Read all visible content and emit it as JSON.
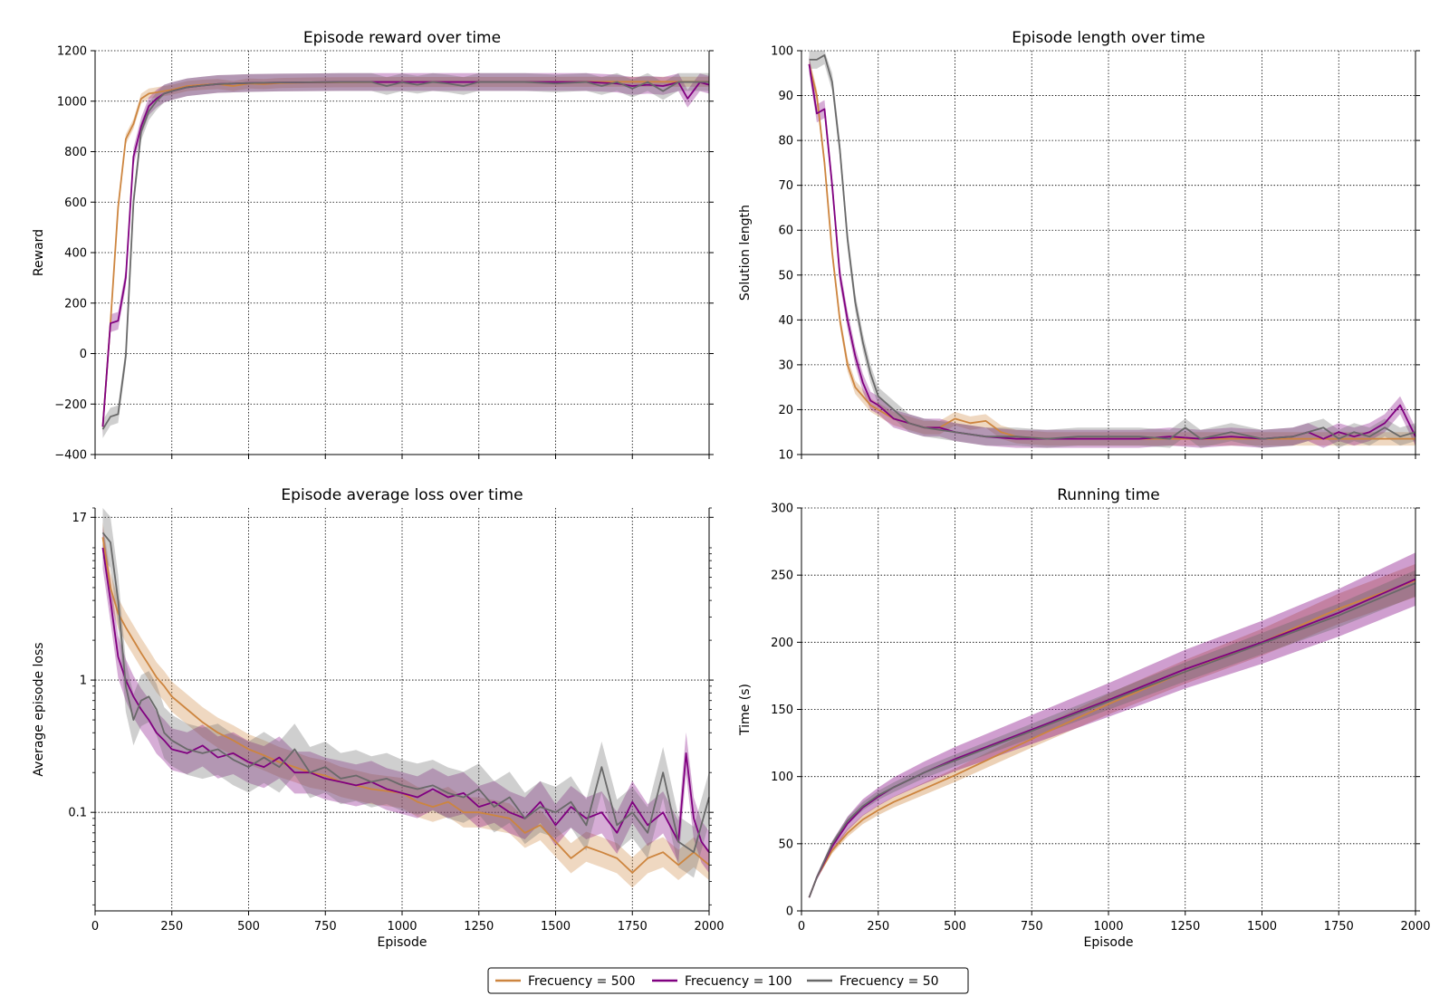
{
  "colors": {
    "freq500": "#cd853f",
    "freq100": "#800080",
    "freq50": "#696969"
  },
  "legend": [
    {
      "label": "Frecuency = 500",
      "color": "#cd853f"
    },
    {
      "label": "Frecuency = 100",
      "color": "#800080"
    },
    {
      "label": "Frecuency = 50",
      "color": "#696969"
    }
  ],
  "chart_data": [
    {
      "type": "line",
      "title": "Episode reward over time",
      "xlabel": "",
      "ylabel": "Reward",
      "xlim": [
        0,
        2000
      ],
      "ylim": [
        -400,
        1200
      ],
      "yscale": "linear",
      "grid": true,
      "x_tick_labels_shown": false,
      "yticks": [
        -400,
        -200,
        0,
        200,
        400,
        600,
        800,
        1000,
        1200
      ],
      "ytick_labels": [
        "−400",
        "−200",
        "0",
        "200",
        "400",
        "600",
        "800",
        "1000",
        "1200"
      ],
      "series": [
        {
          "name": "Frecuency = 500",
          "x": [
            25,
            50,
            75,
            100,
            125,
            150,
            175,
            200,
            225,
            250,
            300,
            350,
            400,
            450,
            500,
            550,
            600,
            700,
            800,
            1000,
            1200,
            1400,
            1600,
            1800,
            2000
          ],
          "values": [
            -290,
            120,
            580,
            850,
            910,
            1010,
            1030,
            1035,
            1040,
            1045,
            1060,
            1065,
            1068,
            1060,
            1070,
            1068,
            1072,
            1074,
            1075,
            1076,
            1076,
            1076,
            1077,
            1077,
            1077
          ],
          "spread": 20
        },
        {
          "name": "Frecuency = 100",
          "x": [
            25,
            50,
            75,
            100,
            125,
            150,
            175,
            200,
            225,
            250,
            300,
            350,
            400,
            450,
            500,
            600,
            700,
            800,
            1000,
            1200,
            1400,
            1600,
            1700,
            1750,
            1800,
            1850,
            1900,
            1930,
            1970,
            2000
          ],
          "values": [
            -290,
            120,
            130,
            300,
            780,
            900,
            980,
            1010,
            1030,
            1040,
            1055,
            1062,
            1068,
            1070,
            1072,
            1074,
            1075,
            1076,
            1076,
            1076,
            1076,
            1076,
            1070,
            1060,
            1065,
            1060,
            1075,
            1010,
            1075,
            1065
          ],
          "spread": 35
        },
        {
          "name": "Frecuency = 50",
          "x": [
            25,
            50,
            75,
            100,
            125,
            150,
            175,
            200,
            225,
            250,
            300,
            350,
            400,
            450,
            500,
            600,
            700,
            800,
            900,
            950,
            1000,
            1050,
            1100,
            1150,
            1200,
            1250,
            1300,
            1400,
            1500,
            1600,
            1650,
            1700,
            1750,
            1800,
            1850,
            1900,
            1950,
            2000
          ],
          "values": [
            -300,
            -250,
            -240,
            -10,
            600,
            880,
            960,
            1000,
            1030,
            1040,
            1055,
            1062,
            1068,
            1070,
            1072,
            1074,
            1075,
            1076,
            1076,
            1060,
            1075,
            1065,
            1076,
            1070,
            1060,
            1076,
            1076,
            1076,
            1070,
            1076,
            1060,
            1076,
            1050,
            1076,
            1040,
            1076,
            1076,
            1076
          ],
          "spread": 35
        }
      ]
    },
    {
      "type": "line",
      "title": "Episode length over time",
      "xlabel": "",
      "ylabel": "Solution length",
      "xlim": [
        0,
        2000
      ],
      "ylim": [
        10,
        100
      ],
      "yscale": "linear",
      "grid": true,
      "x_tick_labels_shown": false,
      "yticks": [
        10,
        20,
        30,
        40,
        50,
        60,
        70,
        80,
        90,
        100
      ],
      "ytick_labels": [
        "10",
        "20",
        "30",
        "40",
        "50",
        "60",
        "70",
        "80",
        "90",
        "100"
      ],
      "series": [
        {
          "name": "Frecuency = 500",
          "x": [
            25,
            50,
            75,
            100,
            125,
            150,
            175,
            200,
            225,
            250,
            300,
            350,
            400,
            450,
            500,
            550,
            600,
            650,
            700,
            800,
            900,
            1000,
            1200,
            1400,
            1600,
            1800,
            2000
          ],
          "values": [
            97,
            90,
            75,
            55,
            40,
            30,
            25,
            23,
            21,
            20,
            18,
            17,
            16,
            16,
            18,
            17,
            17.5,
            15,
            14,
            13.5,
            13.5,
            13.5,
            13.5,
            13.5,
            13.5,
            13.5,
            13.5
          ],
          "spread": 1.5
        },
        {
          "name": "Frecuency = 100",
          "x": [
            25,
            50,
            75,
            100,
            125,
            150,
            175,
            200,
            225,
            250,
            300,
            350,
            400,
            450,
            500,
            600,
            700,
            800,
            900,
            1000,
            1100,
            1200,
            1300,
            1400,
            1500,
            1600,
            1650,
            1700,
            1750,
            1800,
            1850,
            1900,
            1950,
            2000
          ],
          "values": [
            97,
            86,
            87,
            70,
            50,
            40,
            32,
            26,
            22,
            21,
            18,
            17,
            16,
            16,
            15,
            14,
            13.5,
            13.5,
            13.5,
            13.5,
            13.5,
            14,
            13.5,
            14,
            13.5,
            14,
            15,
            13.5,
            15,
            14,
            15,
            17,
            21,
            14
          ],
          "spread": 2
        },
        {
          "name": "Frecuency = 50",
          "x": [
            25,
            50,
            75,
            100,
            125,
            150,
            175,
            200,
            225,
            250,
            300,
            350,
            400,
            450,
            500,
            600,
            700,
            800,
            900,
            1000,
            1100,
            1200,
            1250,
            1300,
            1400,
            1500,
            1600,
            1650,
            1700,
            1750,
            1800,
            1850,
            1900,
            1950,
            2000
          ],
          "values": [
            98,
            98,
            99,
            93,
            78,
            58,
            44,
            35,
            28,
            23,
            20,
            17,
            16,
            15.5,
            15,
            14,
            14,
            13.5,
            14,
            14,
            14,
            13.5,
            16,
            13.5,
            15,
            13.5,
            14,
            15,
            16,
            13.5,
            15,
            14,
            16,
            14,
            15
          ],
          "spread": 2
        }
      ]
    },
    {
      "type": "line",
      "title": "Episode average loss over time",
      "xlabel": "Episode",
      "ylabel": "Average episode loss",
      "xlim": [
        0,
        2000
      ],
      "ylim": [
        0.018,
        20
      ],
      "yscale": "log",
      "grid": true,
      "x_tick_labels_shown": true,
      "xticks": [
        0,
        250,
        500,
        750,
        1000,
        1250,
        1500,
        1750,
        2000
      ],
      "xtick_labels": [
        "0",
        "250",
        "500",
        "750",
        "1000",
        "1250",
        "1500",
        "1750",
        "2000"
      ],
      "yticks": [
        0.1,
        1,
        17
      ],
      "ytick_labels": [
        "0.1",
        "1",
        "17"
      ],
      "series": [
        {
          "name": "Frecuency = 500",
          "x": [
            25,
            50,
            75,
            100,
            125,
            150,
            175,
            200,
            225,
            250,
            300,
            350,
            400,
            450,
            500,
            550,
            600,
            650,
            700,
            750,
            800,
            850,
            900,
            950,
            1000,
            1050,
            1100,
            1150,
            1200,
            1250,
            1300,
            1350,
            1400,
            1450,
            1500,
            1550,
            1600,
            1650,
            1700,
            1750,
            1800,
            1850,
            1900,
            1950,
            2000
          ],
          "values": [
            12,
            5.0,
            3.2,
            2.5,
            2.0,
            1.6,
            1.3,
            1.05,
            0.9,
            0.75,
            0.6,
            0.48,
            0.4,
            0.35,
            0.3,
            0.27,
            0.24,
            0.22,
            0.2,
            0.19,
            0.17,
            0.16,
            0.15,
            0.145,
            0.14,
            0.12,
            0.11,
            0.12,
            0.1,
            0.1,
            0.095,
            0.09,
            0.07,
            0.08,
            0.06,
            0.045,
            0.055,
            0.05,
            0.045,
            0.035,
            0.045,
            0.05,
            0.04,
            0.05,
            0.04
          ],
          "spread": 0.15
        },
        {
          "name": "Frecuency = 100",
          "x": [
            25,
            50,
            75,
            100,
            125,
            150,
            175,
            200,
            225,
            250,
            300,
            350,
            400,
            450,
            500,
            550,
            600,
            650,
            700,
            750,
            800,
            850,
            900,
            950,
            1000,
            1050,
            1100,
            1150,
            1200,
            1250,
            1300,
            1350,
            1400,
            1450,
            1500,
            1550,
            1600,
            1650,
            1700,
            1750,
            1800,
            1850,
            1900,
            1925,
            1950,
            1975,
            2000
          ],
          "values": [
            10,
            4.0,
            1.5,
            1.0,
            0.75,
            0.6,
            0.5,
            0.4,
            0.35,
            0.3,
            0.28,
            0.32,
            0.26,
            0.28,
            0.24,
            0.22,
            0.26,
            0.2,
            0.2,
            0.18,
            0.17,
            0.16,
            0.17,
            0.15,
            0.14,
            0.13,
            0.15,
            0.13,
            0.14,
            0.11,
            0.12,
            0.1,
            0.09,
            0.12,
            0.08,
            0.11,
            0.09,
            0.1,
            0.07,
            0.12,
            0.08,
            0.1,
            0.06,
            0.28,
            0.09,
            0.06,
            0.05
          ],
          "spread": 0.22
        },
        {
          "name": "Frecuency = 50",
          "x": [
            25,
            50,
            75,
            100,
            125,
            150,
            175,
            200,
            225,
            250,
            300,
            350,
            400,
            450,
            500,
            550,
            600,
            650,
            700,
            750,
            800,
            850,
            900,
            950,
            1000,
            1050,
            1100,
            1150,
            1200,
            1250,
            1300,
            1350,
            1400,
            1450,
            1500,
            1550,
            1600,
            1650,
            1700,
            1750,
            1800,
            1850,
            1900,
            1950,
            2000
          ],
          "values": [
            13,
            11,
            4.0,
            0.9,
            0.5,
            0.7,
            0.75,
            0.6,
            0.4,
            0.35,
            0.3,
            0.28,
            0.3,
            0.25,
            0.22,
            0.26,
            0.22,
            0.3,
            0.2,
            0.22,
            0.18,
            0.19,
            0.17,
            0.18,
            0.16,
            0.15,
            0.16,
            0.14,
            0.13,
            0.15,
            0.11,
            0.13,
            0.09,
            0.11,
            0.1,
            0.12,
            0.08,
            0.22,
            0.08,
            0.1,
            0.07,
            0.2,
            0.06,
            0.05,
            0.13
          ],
          "spread": 0.28
        }
      ]
    },
    {
      "type": "area",
      "title": "Running time",
      "xlabel": "Episode",
      "ylabel": "Time (s)",
      "xlim": [
        0,
        2000
      ],
      "ylim": [
        0,
        300
      ],
      "yscale": "linear",
      "grid": true,
      "x_tick_labels_shown": true,
      "xticks": [
        0,
        250,
        500,
        750,
        1000,
        1250,
        1500,
        1750,
        2000
      ],
      "xtick_labels": [
        "0",
        "250",
        "500",
        "750",
        "1000",
        "1250",
        "1500",
        "1750",
        "2000"
      ],
      "yticks": [
        0,
        50,
        100,
        150,
        200,
        250,
        300
      ],
      "ytick_labels": [
        "0",
        "50",
        "100",
        "150",
        "200",
        "250",
        "300"
      ],
      "series": [
        {
          "name": "Frecuency = 500",
          "x": [
            25,
            50,
            100,
            150,
            200,
            250,
            300,
            400,
            500,
            750,
            1000,
            1250,
            1500,
            1750,
            2000
          ],
          "values": [
            10,
            25,
            45,
            58,
            68,
            75,
            81,
            91,
            101,
            128,
            154,
            178,
            200,
            225,
            246
          ],
          "spread": 0.05
        },
        {
          "name": "Frecuency = 100",
          "x": [
            25,
            50,
            100,
            150,
            200,
            250,
            300,
            400,
            500,
            750,
            1000,
            1250,
            1500,
            1750,
            2000
          ],
          "values": [
            10,
            25,
            48,
            65,
            77,
            85,
            92,
            103,
            113,
            135,
            157,
            180,
            200,
            222,
            247
          ],
          "spread": 0.08
        },
        {
          "name": "Frecuency = 50",
          "x": [
            25,
            50,
            100,
            150,
            200,
            250,
            300,
            400,
            500,
            750,
            1000,
            1250,
            1500,
            1750,
            2000
          ],
          "values": [
            10,
            25,
            50,
            67,
            78,
            86,
            92,
            103,
            112,
            134,
            156,
            178,
            199,
            220,
            244
          ],
          "spread": 0.04
        }
      ]
    }
  ]
}
